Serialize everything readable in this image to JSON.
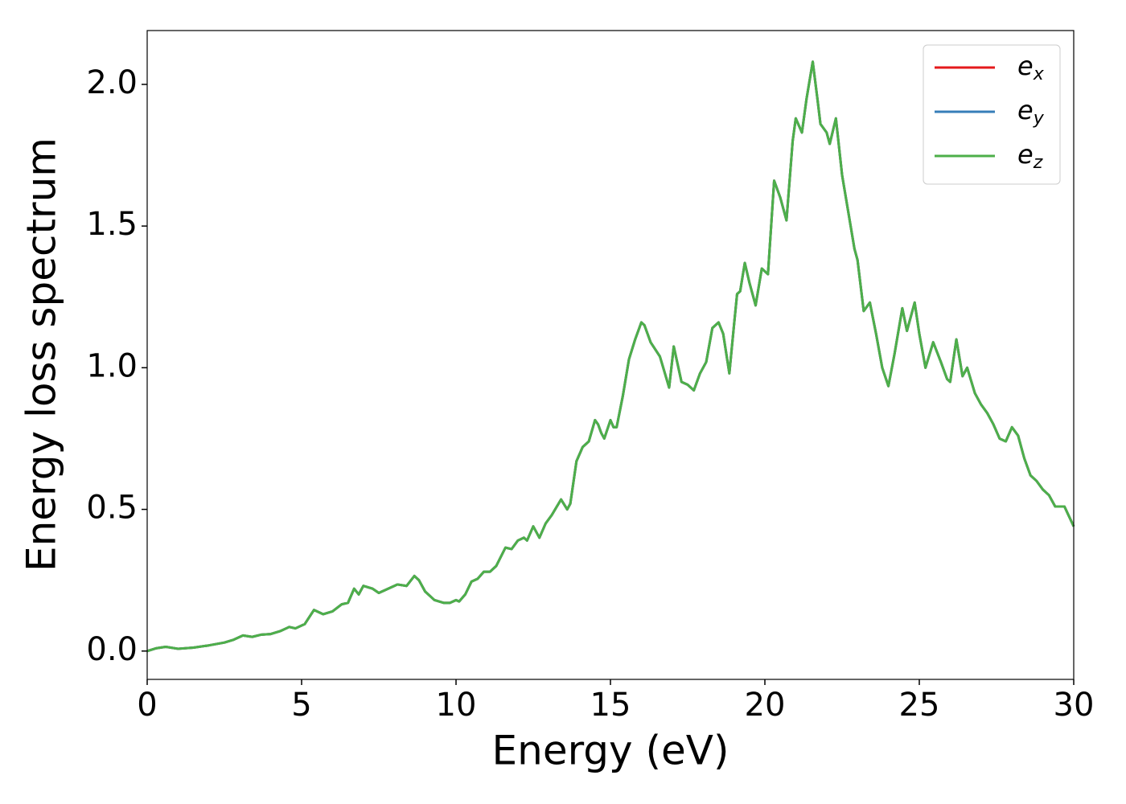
{
  "chart_data": {
    "type": "line",
    "xlabel": "Energy (eV)",
    "ylabel": "Energy loss spectrum",
    "xlim": [
      0,
      30
    ],
    "ylim": [
      -0.1,
      2.19
    ],
    "xticks": [
      0,
      5,
      10,
      15,
      20,
      25,
      30
    ],
    "yticks": [
      {
        "value": 0,
        "label": "0.0"
      },
      {
        "value": 0.5,
        "label": "0.5"
      },
      {
        "value": 1,
        "label": "1.0"
      },
      {
        "value": 1.5,
        "label": "1.5"
      },
      {
        "value": 2,
        "label": "2.0"
      }
    ],
    "legend": "upper right",
    "x": [
      0,
      0.3,
      0.6,
      1.0,
      1.5,
      2.0,
      2.5,
      2.8,
      3.1,
      3.4,
      3.7,
      4.0,
      4.3,
      4.6,
      4.8,
      5.1,
      5.4,
      5.7,
      6.0,
      6.3,
      6.5,
      6.7,
      6.85,
      7.0,
      7.3,
      7.5,
      7.8,
      8.1,
      8.4,
      8.65,
      8.8,
      9.0,
      9.3,
      9.6,
      9.8,
      10.0,
      10.1,
      10.3,
      10.5,
      10.7,
      10.9,
      11.1,
      11.3,
      11.6,
      11.8,
      12.0,
      12.2,
      12.3,
      12.5,
      12.7,
      12.9,
      13.1,
      13.4,
      13.6,
      13.7,
      13.9,
      14.1,
      14.3,
      14.5,
      14.6,
      14.7,
      14.8,
      15.0,
      15.1,
      15.2,
      15.4,
      15.6,
      15.8,
      16.0,
      16.1,
      16.3,
      16.6,
      16.9,
      17.05,
      17.3,
      17.5,
      17.7,
      17.9,
      18.1,
      18.3,
      18.5,
      18.65,
      18.85,
      19.0,
      19.1,
      19.2,
      19.35,
      19.5,
      19.7,
      19.9,
      20.1,
      20.3,
      20.5,
      20.7,
      20.9,
      21.0,
      21.2,
      21.35,
      21.55,
      21.7,
      21.8,
      22.0,
      22.1,
      22.3,
      22.5,
      22.7,
      22.9,
      23.0,
      23.2,
      23.4,
      23.6,
      23.8,
      24.0,
      24.2,
      24.45,
      24.6,
      24.85,
      25.0,
      25.2,
      25.45,
      25.7,
      25.9,
      26.0,
      26.2,
      26.4,
      26.55,
      26.8,
      27.0,
      27.2,
      27.4,
      27.6,
      27.8,
      28.0,
      28.2,
      28.4,
      28.6,
      28.8,
      29.0,
      29.2,
      29.4,
      29.7,
      30.0
    ],
    "series": [
      {
        "name": "ex",
        "color": "#e41a1c",
        "values": [
          0,
          0.01,
          0.015,
          0.008,
          0.012,
          0.02,
          0.03,
          0.04,
          0.055,
          0.05,
          0.058,
          0.06,
          0.07,
          0.085,
          0.08,
          0.095,
          0.145,
          0.13,
          0.14,
          0.165,
          0.17,
          0.22,
          0.2,
          0.23,
          0.22,
          0.205,
          0.22,
          0.235,
          0.23,
          0.265,
          0.25,
          0.21,
          0.18,
          0.17,
          0.17,
          0.18,
          0.175,
          0.2,
          0.245,
          0.255,
          0.28,
          0.28,
          0.3,
          0.365,
          0.36,
          0.39,
          0.4,
          0.39,
          0.44,
          0.4,
          0.45,
          0.48,
          0.535,
          0.5,
          0.52,
          0.67,
          0.72,
          0.74,
          0.815,
          0.8,
          0.77,
          0.75,
          0.815,
          0.79,
          0.79,
          0.9,
          1.03,
          1.1,
          1.16,
          1.15,
          1.09,
          1.04,
          0.93,
          1.075,
          0.95,
          0.94,
          0.92,
          0.98,
          1.02,
          1.14,
          1.16,
          1.12,
          0.98,
          1.15,
          1.26,
          1.27,
          1.37,
          1.3,
          1.22,
          1.35,
          1.33,
          1.66,
          1.6,
          1.52,
          1.8,
          1.88,
          1.83,
          1.95,
          2.08,
          1.95,
          1.86,
          1.83,
          1.79,
          1.88,
          1.68,
          1.55,
          1.42,
          1.38,
          1.2,
          1.23,
          1.12,
          1.0,
          0.935,
          1.05,
          1.21,
          1.13,
          1.23,
          1.12,
          1.0,
          1.09,
          1.02,
          0.96,
          0.95,
          1.1,
          0.97,
          1.0,
          0.91,
          0.87,
          0.84,
          0.8,
          0.75,
          0.74,
          0.79,
          0.76,
          0.68,
          0.62,
          0.6,
          0.57,
          0.55,
          0.51,
          0.51,
          0.44
        ]
      },
      {
        "name": "ey",
        "color": "#377eb8",
        "values": [
          0,
          0.01,
          0.015,
          0.008,
          0.012,
          0.02,
          0.03,
          0.04,
          0.055,
          0.05,
          0.058,
          0.06,
          0.07,
          0.085,
          0.08,
          0.095,
          0.145,
          0.13,
          0.14,
          0.165,
          0.17,
          0.22,
          0.2,
          0.23,
          0.22,
          0.205,
          0.22,
          0.235,
          0.23,
          0.265,
          0.25,
          0.21,
          0.18,
          0.17,
          0.17,
          0.18,
          0.175,
          0.2,
          0.245,
          0.255,
          0.28,
          0.28,
          0.3,
          0.365,
          0.36,
          0.39,
          0.4,
          0.39,
          0.44,
          0.4,
          0.45,
          0.48,
          0.535,
          0.5,
          0.52,
          0.67,
          0.72,
          0.74,
          0.815,
          0.8,
          0.77,
          0.75,
          0.815,
          0.79,
          0.79,
          0.9,
          1.03,
          1.1,
          1.16,
          1.15,
          1.09,
          1.04,
          0.93,
          1.075,
          0.95,
          0.94,
          0.92,
          0.98,
          1.02,
          1.14,
          1.16,
          1.12,
          0.98,
          1.15,
          1.26,
          1.27,
          1.37,
          1.3,
          1.22,
          1.35,
          1.33,
          1.66,
          1.6,
          1.52,
          1.8,
          1.88,
          1.83,
          1.95,
          2.08,
          1.95,
          1.86,
          1.83,
          1.79,
          1.88,
          1.68,
          1.55,
          1.42,
          1.38,
          1.2,
          1.23,
          1.12,
          1.0,
          0.935,
          1.05,
          1.21,
          1.13,
          1.23,
          1.12,
          1.0,
          1.09,
          1.02,
          0.96,
          0.95,
          1.1,
          0.97,
          1.0,
          0.91,
          0.87,
          0.84,
          0.8,
          0.75,
          0.74,
          0.79,
          0.76,
          0.68,
          0.62,
          0.6,
          0.57,
          0.55,
          0.51,
          0.51,
          0.44
        ]
      },
      {
        "name": "ez",
        "color": "#4daf4a",
        "values": [
          0,
          0.01,
          0.015,
          0.008,
          0.012,
          0.02,
          0.03,
          0.04,
          0.055,
          0.05,
          0.058,
          0.06,
          0.07,
          0.085,
          0.08,
          0.095,
          0.145,
          0.13,
          0.14,
          0.165,
          0.17,
          0.22,
          0.2,
          0.23,
          0.22,
          0.205,
          0.22,
          0.235,
          0.23,
          0.265,
          0.25,
          0.21,
          0.18,
          0.17,
          0.17,
          0.18,
          0.175,
          0.2,
          0.245,
          0.255,
          0.28,
          0.28,
          0.3,
          0.365,
          0.36,
          0.39,
          0.4,
          0.39,
          0.44,
          0.4,
          0.45,
          0.48,
          0.535,
          0.5,
          0.52,
          0.67,
          0.72,
          0.74,
          0.815,
          0.8,
          0.77,
          0.75,
          0.815,
          0.79,
          0.79,
          0.9,
          1.03,
          1.1,
          1.16,
          1.15,
          1.09,
          1.04,
          0.93,
          1.075,
          0.95,
          0.94,
          0.92,
          0.98,
          1.02,
          1.14,
          1.16,
          1.12,
          0.98,
          1.15,
          1.26,
          1.27,
          1.37,
          1.3,
          1.22,
          1.35,
          1.33,
          1.66,
          1.6,
          1.52,
          1.8,
          1.88,
          1.83,
          1.95,
          2.08,
          1.95,
          1.86,
          1.83,
          1.79,
          1.88,
          1.68,
          1.55,
          1.42,
          1.38,
          1.2,
          1.23,
          1.12,
          1.0,
          0.935,
          1.05,
          1.21,
          1.13,
          1.23,
          1.12,
          1.0,
          1.09,
          1.02,
          0.96,
          0.95,
          1.1,
          0.97,
          1.0,
          0.91,
          0.87,
          0.84,
          0.8,
          0.75,
          0.74,
          0.79,
          0.76,
          0.68,
          0.62,
          0.6,
          0.57,
          0.55,
          0.51,
          0.51,
          0.44
        ]
      }
    ]
  }
}
